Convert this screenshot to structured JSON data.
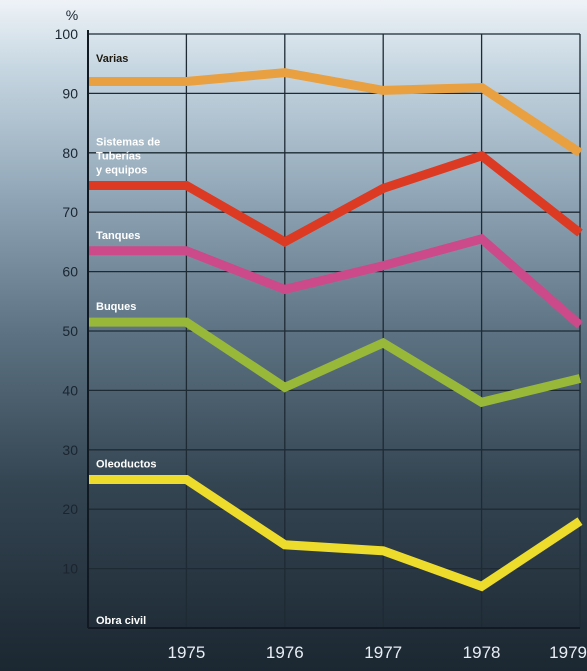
{
  "chart_data": {
    "type": "line",
    "title": "",
    "xlabel": "",
    "ylabel": "%",
    "ylim": [
      0,
      100
    ],
    "yticks": [
      10,
      20,
      30,
      40,
      50,
      60,
      70,
      80,
      90,
      100
    ],
    "x": [
      1974,
      1975,
      1976,
      1977,
      1978,
      1979
    ],
    "xtick_labels": [
      "1975",
      "1976",
      "1977",
      "1978",
      "1979"
    ],
    "grid": true,
    "series": [
      {
        "name": "Varias",
        "color": "#e8a040",
        "values": [
          92,
          92,
          93.5,
          90.5,
          91,
          80
        ]
      },
      {
        "name": "Sistemas de Tuberías y equipos",
        "color": "#dc3a22",
        "values": [
          74.5,
          74.5,
          65,
          74,
          79.5,
          66.5
        ]
      },
      {
        "name": "Tanques",
        "color": "#cc4a8a",
        "values": [
          63.5,
          63.5,
          57,
          61,
          65.5,
          51
        ]
      },
      {
        "name": "Buques",
        "color": "#98b83a",
        "values": [
          51.5,
          51.5,
          40.5,
          48,
          38,
          42
        ]
      },
      {
        "name": "Oleoductos",
        "color": "#eedc2c",
        "values": [
          25,
          25,
          14,
          13,
          7,
          18
        ]
      },
      {
        "name": "Obra civil",
        "color": "#ffffff",
        "values": null
      }
    ],
    "label_colors": {
      "Varias": "#1e1a10",
      "Sistemas de Tuberías y equipos": "#ffffff",
      "Tanques": "#ffffff",
      "Buques": "#ffffff",
      "Oleoductos": "#ffffff",
      "Obra civil": "#ffffff"
    }
  }
}
